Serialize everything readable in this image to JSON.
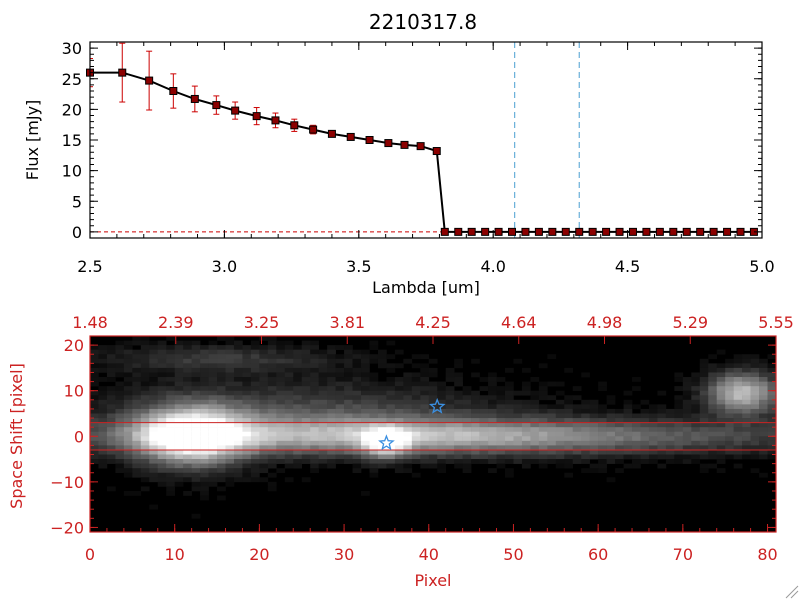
{
  "title": "2210317.8",
  "chart_data": [
    {
      "type": "line",
      "xlabel": "Lambda [um]",
      "ylabel": "Flux [mJy]",
      "xlim": [
        2.5,
        5.0
      ],
      "ylim": [
        -1,
        31
      ],
      "x_ticks": [
        "2.5",
        "3.0",
        "3.5",
        "4.0",
        "4.5",
        "5.0"
      ],
      "y_ticks": [
        "0",
        "5",
        "10",
        "15",
        "20",
        "25",
        "30"
      ],
      "grid": false,
      "series": [
        {
          "x": [
            2.5,
            2.62,
            2.72,
            2.81,
            2.89,
            2.97,
            3.04,
            3.12,
            3.19,
            3.26,
            3.33,
            3.4,
            3.47,
            3.54,
            3.61,
            3.67,
            3.73,
            3.79,
            3.82,
            3.87,
            3.92,
            3.97,
            4.02,
            4.07,
            4.12,
            4.17,
            4.22,
            4.27,
            4.32,
            4.37,
            4.42,
            4.47,
            4.52,
            4.57,
            4.62,
            4.67,
            4.72,
            4.77,
            4.82,
            4.87,
            4.92,
            4.97
          ],
          "y": [
            26.0,
            26.0,
            24.7,
            23.0,
            21.7,
            20.7,
            19.8,
            18.9,
            18.2,
            17.4,
            16.7,
            16.0,
            15.5,
            15.0,
            14.5,
            14.2,
            14.0,
            13.2,
            0,
            0,
            0,
            0,
            0,
            0,
            0,
            0,
            0,
            0,
            0,
            0,
            0,
            0,
            0,
            0,
            0,
            0,
            0,
            0,
            0,
            0,
            0,
            0
          ],
          "yerr": [
            2.3,
            4.8,
            4.8,
            2.8,
            2.1,
            1.5,
            1.4,
            1.4,
            1.2,
            1.0,
            0.7,
            0.5,
            0.5,
            0.4,
            0.4,
            0.3,
            0.3,
            0.3,
            0,
            0,
            0,
            0,
            0,
            0,
            0,
            0,
            0,
            0,
            0,
            0,
            0,
            0,
            0,
            0,
            0,
            0,
            0,
            0,
            0,
            0,
            0,
            0
          ],
          "color": "#000000",
          "marker_color": "#8b0000",
          "errorbar_color": "#cc0000"
        }
      ],
      "vlines": [
        4.08,
        4.32
      ],
      "vline_color": "#4a9fd0",
      "hline": 0,
      "hline_color": "#cc0000"
    },
    {
      "type": "heatmap",
      "xlabel": "Pixel",
      "ylabel": "Space Shift [pixel]",
      "xlim": [
        0,
        81
      ],
      "ylim": [
        -21,
        22
      ],
      "x_ticks": [
        "0",
        "10",
        "20",
        "30",
        "40",
        "50",
        "60",
        "70",
        "80"
      ],
      "y_ticks": [
        "−20",
        "−10",
        "0",
        "10",
        "20"
      ],
      "top_x_ticks": [
        "1.48",
        "2.39",
        "3.25",
        "3.81",
        "4.25",
        "4.64",
        "4.98",
        "5.29",
        "5.55"
      ],
      "hlines": [
        3,
        -3
      ],
      "axis_color": "#cc2222",
      "stars": [
        {
          "x": 35,
          "y": -1.5
        },
        {
          "x": 41,
          "y": 6.5
        }
      ],
      "star_color": "#3b8fe0",
      "sources": [
        {
          "x": 12,
          "y": 0,
          "sx": 4.5,
          "sy": 4.5,
          "amp": 1.0
        },
        {
          "x": 35,
          "y": -1.5,
          "sx": 1.8,
          "sy": 2.2,
          "amp": 0.7
        },
        {
          "x": 77,
          "y": 9.5,
          "sx": 3.0,
          "sy": 3.2,
          "amp": 0.75
        }
      ]
    }
  ]
}
